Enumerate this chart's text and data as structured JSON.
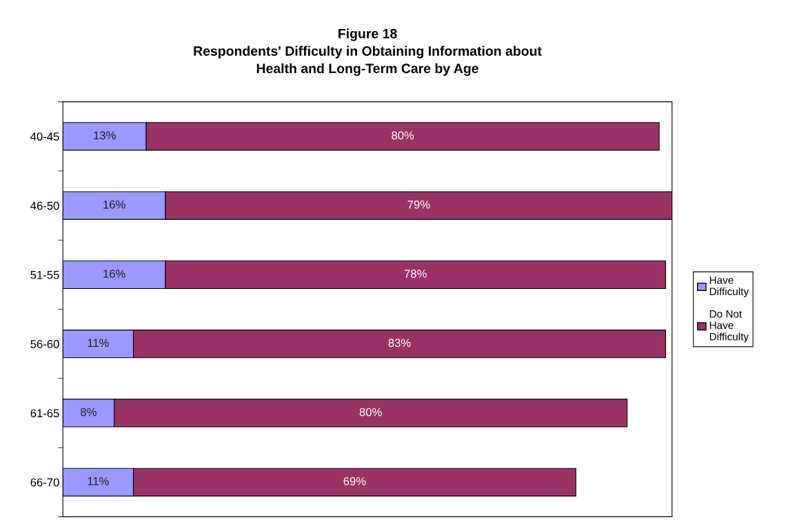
{
  "chart_data": {
    "type": "bar",
    "orientation": "horizontal",
    "stacked": true,
    "title": "Figure 18\nRespondents' Difficulty in Obtaining Information about\nHealth and Long-Term Care by Age",
    "categories": [
      "40-45",
      "46-50",
      "51-55",
      "56-60",
      "61-65",
      "66-70"
    ],
    "series": [
      {
        "name": "Have\nDifficulty",
        "color": "#9999ff",
        "values": [
          13,
          16,
          16,
          11,
          8,
          11
        ],
        "value_labels": [
          "13%",
          "16%",
          "16%",
          "11%",
          "8%",
          "11%"
        ]
      },
      {
        "name": "Do Not\nHave\nDifficulty",
        "color": "#993366",
        "values": [
          80,
          79,
          78,
          83,
          80,
          69
        ],
        "value_labels": [
          "80%",
          "79%",
          "78%",
          "83%",
          "80%",
          "69%"
        ]
      }
    ],
    "legend": "right",
    "grid": false,
    "tick_labels": "y"
  }
}
